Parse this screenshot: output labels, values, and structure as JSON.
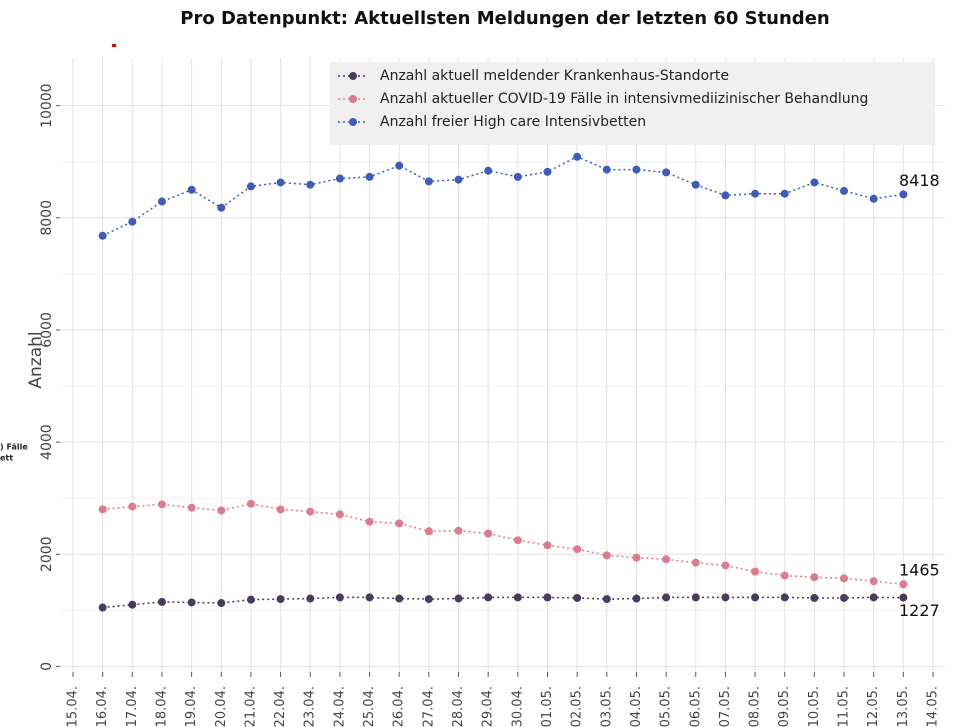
{
  "chart_data": {
    "type": "line",
    "title": "Pro Datenpunkt: Aktuellsten Meldungen der letzten 60 Stunden",
    "y_label": "Anzahl",
    "annotations": [
      ") Fälle",
      "ett"
    ],
    "categories": [
      "15.04.",
      "16.04.",
      "17.04.",
      "18.04.",
      "19.04.",
      "20.04.",
      "21.04.",
      "22.04.",
      "23.04.",
      "24.04.",
      "25.04.",
      "26.04.",
      "27.04.",
      "28.04.",
      "29.04.",
      "30.04.",
      "01.05.",
      "02.05.",
      "03.05.",
      "04.05.",
      "05.05.",
      "06.05.",
      "07.05.",
      "08.05.",
      "09.05.",
      "10.05.",
      "11.05.",
      "12.05.",
      "13.05.",
      "14.05."
    ],
    "series": [
      {
        "name": "Anzahl aktuell meldender Krankenhaus-Standorte",
        "color": "#4a3a5c",
        "values": [
          null,
          1050,
          1100,
          1150,
          1140,
          1130,
          1190,
          1200,
          1210,
          1230,
          1230,
          1210,
          1200,
          1210,
          1230,
          1230,
          1230,
          1220,
          1200,
          1210,
          1230,
          1230,
          1230,
          1230,
          1230,
          1220,
          1220,
          1230,
          1227,
          null
        ]
      },
      {
        "name": "Anzahl aktueller COVID-19 Fälle in intensivmediizinischer Behandlung",
        "color": "#e07a8f",
        "values": [
          null,
          2800,
          2850,
          2890,
          2830,
          2780,
          2900,
          2800,
          2760,
          2710,
          2580,
          2550,
          2410,
          2420,
          2370,
          2250,
          2160,
          2090,
          1980,
          1940,
          1910,
          1850,
          1800,
          1690,
          1620,
          1590,
          1570,
          1520,
          1465,
          null
        ]
      },
      {
        "name": "Anzahl freier High care Intensivbetten",
        "color": "#3f5bbd",
        "values": [
          null,
          7680,
          7930,
          8290,
          8500,
          8180,
          8560,
          8630,
          8590,
          8700,
          8730,
          8930,
          8650,
          8680,
          8840,
          8730,
          8820,
          9090,
          8860,
          8860,
          8810,
          8590,
          8400,
          8430,
          8430,
          8630,
          8480,
          8340,
          8418,
          null
        ]
      }
    ],
    "ylim": [
      -100,
      10850
    ],
    "yticks": [
      0,
      2000,
      4000,
      6000,
      8000,
      10000
    ],
    "grid": true,
    "legend": "top-right",
    "end_labels": true
  }
}
